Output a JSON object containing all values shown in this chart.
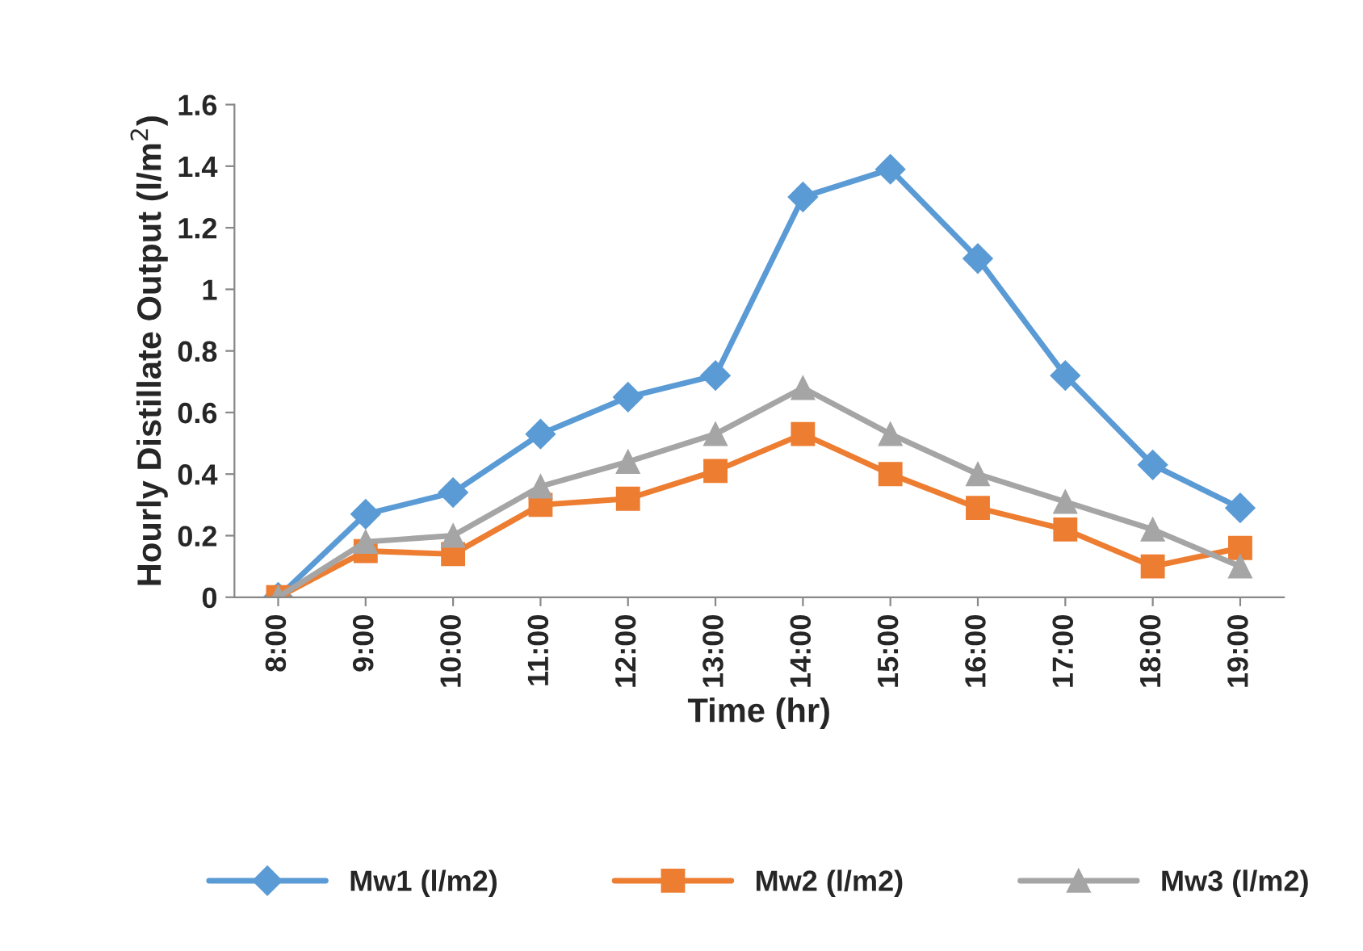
{
  "chart_data": {
    "type": "line",
    "xlabel": "Time (hr)",
    "ylabel": "Hourly Distillate Output (l/m$^{2}$)",
    "categories": [
      "8:00",
      "9:00",
      "10:00",
      "11:00",
      "12:00",
      "13:00",
      "14:00",
      "15:00",
      "16:00",
      "17:00",
      "18:00",
      "19:00"
    ],
    "series": [
      {
        "name": "Mw1 (l/m2)",
        "color": "#5b9bd5",
        "marker": "diamond",
        "values": [
          0,
          0.27,
          0.34,
          0.53,
          0.65,
          0.72,
          1.3,
          1.39,
          1.1,
          0.72,
          0.43,
          0.29
        ]
      },
      {
        "name": "Mw2 (l/m2)",
        "color": "#ed7d31",
        "marker": "square",
        "values": [
          0,
          0.15,
          0.14,
          0.3,
          0.32,
          0.41,
          0.53,
          0.4,
          0.29,
          0.22,
          0.1,
          0.16
        ]
      },
      {
        "name": "Mw3 (l/m2)",
        "color": "#a5a5a5",
        "marker": "triangle",
        "values": [
          0,
          0.18,
          0.2,
          0.36,
          0.44,
          0.53,
          0.68,
          0.53,
          0.4,
          0.31,
          0.22,
          0.1
        ]
      }
    ],
    "ylim": [
      0,
      1.6
    ],
    "yticks": [
      0,
      0.2,
      0.4,
      0.6,
      0.8,
      1,
      1.2,
      1.4,
      1.6
    ],
    "grid": false,
    "legend": "bottom",
    "line_style": "solid"
  }
}
